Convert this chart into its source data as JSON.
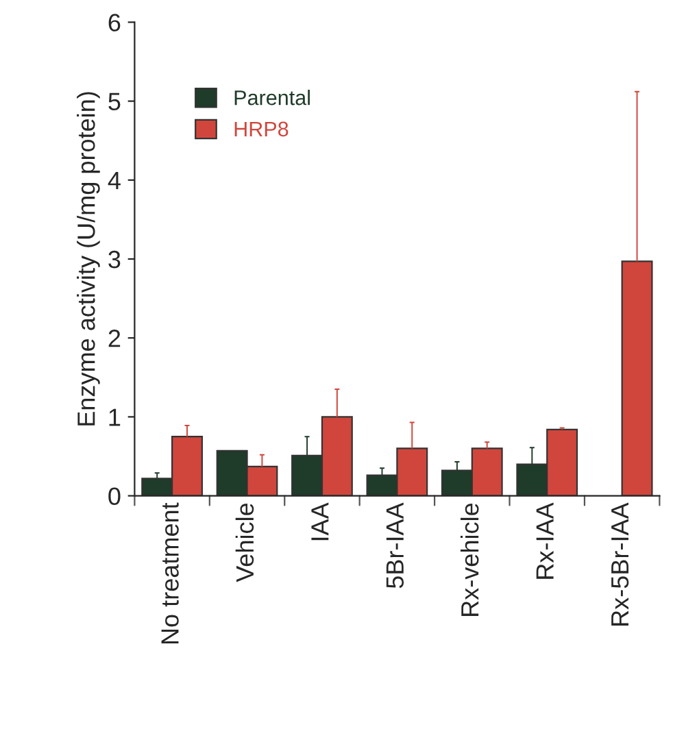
{
  "chart_data": {
    "type": "bar",
    "ylabel": "Enzyme activity (U/mg protein)",
    "categories": [
      "No treatment",
      "Vehicle",
      "IAA",
      "5Br-IAA",
      "Rx-vehicle",
      "Rx-IAA",
      "Rx-5Br-IAA"
    ],
    "series": [
      {
        "name": "Parental",
        "color": "#1f3b2a",
        "values": [
          0.22,
          0.57,
          0.51,
          0.26,
          0.32,
          0.4,
          null
        ],
        "errors": [
          [
            0.22,
            0.29
          ],
          null,
          [
            0.51,
            0.75
          ],
          [
            0.26,
            0.35
          ],
          [
            0.32,
            0.43
          ],
          [
            0.4,
            0.61
          ],
          null
        ]
      },
      {
        "name": "HRP8",
        "color": "#d0463c",
        "values": [
          0.75,
          0.37,
          1.0,
          0.6,
          0.6,
          0.84,
          2.97
        ],
        "errors": [
          [
            0.75,
            0.89
          ],
          [
            0.37,
            0.52
          ],
          [
            1.0,
            1.35
          ],
          [
            0.6,
            0.93
          ],
          [
            0.6,
            0.68
          ],
          [
            0.84,
            0.86
          ],
          [
            2.97,
            5.12
          ]
        ]
      }
    ],
    "ylim": [
      0,
      6
    ],
    "yticks": [
      0,
      1,
      2,
      3,
      4,
      5,
      6
    ],
    "grid": false,
    "legend": "top left"
  }
}
